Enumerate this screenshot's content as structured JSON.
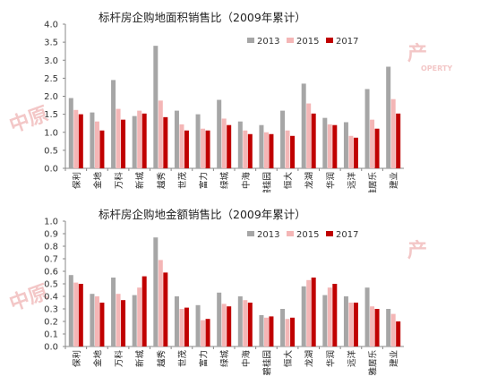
{
  "colors": {
    "s2013": "#a6a6a6",
    "s2015": "#f4b6b6",
    "s2017": "#c00000",
    "axis": "#888888"
  },
  "chart_data": [
    {
      "type": "bar",
      "title": "标杆房企购地面积销售比（2009年累计）",
      "xlabel": "",
      "ylabel": "",
      "ylim": [
        0,
        4.0
      ],
      "yticks": [
        "0.0",
        "0.5",
        "1.0",
        "1.5",
        "2.0",
        "2.5",
        "3.0",
        "3.5",
        "4.0"
      ],
      "ytick_values": [
        0,
        0.5,
        1.0,
        1.5,
        2.0,
        2.5,
        3.0,
        3.5,
        4.0
      ],
      "legend_position": "top-right",
      "categories": [
        "保利",
        "金地",
        "万科",
        "新城",
        "越秀",
        "世茂",
        "富力",
        "绿城",
        "中海",
        "碧桂园",
        "恒大",
        "龙湖",
        "华润",
        "远洋",
        "雅居乐",
        "建业"
      ],
      "series": [
        {
          "name": "2013",
          "values": [
            1.95,
            1.55,
            2.45,
            1.45,
            3.4,
            1.6,
            1.5,
            1.9,
            1.3,
            1.2,
            1.6,
            2.35,
            1.4,
            1.28,
            2.2,
            2.82
          ]
        },
        {
          "name": "2015",
          "values": [
            1.62,
            1.3,
            1.65,
            1.6,
            1.88,
            1.22,
            1.1,
            1.38,
            1.05,
            1.0,
            1.05,
            1.8,
            1.22,
            0.9,
            1.35,
            1.92
          ]
        },
        {
          "name": "2017",
          "values": [
            1.5,
            1.05,
            1.35,
            1.52,
            1.42,
            1.05,
            1.05,
            1.2,
            0.95,
            0.95,
            0.9,
            1.52,
            1.2,
            0.85,
            1.1,
            1.52
          ]
        }
      ]
    },
    {
      "type": "bar",
      "title": "标杆房企购地金额销售比（2009年累计）",
      "xlabel": "",
      "ylabel": "",
      "ylim": [
        0,
        1.0
      ],
      "yticks": [
        "0.0",
        "0.1",
        "0.2",
        "0.3",
        "0.4",
        "0.5",
        "0.6",
        "0.7",
        "0.8",
        "0.9",
        "1.0"
      ],
      "ytick_values": [
        0,
        0.1,
        0.2,
        0.3,
        0.4,
        0.5,
        0.6,
        0.7,
        0.8,
        0.9,
        1.0
      ],
      "legend_position": "top-right",
      "categories": [
        "保利",
        "金地",
        "万科",
        "新城",
        "越秀",
        "世茂",
        "富力",
        "绿城",
        "中海",
        "碧桂园",
        "恒大",
        "龙湖",
        "华润",
        "远洋",
        "雅居乐",
        "建业"
      ],
      "series": [
        {
          "name": "2013",
          "values": [
            0.57,
            0.42,
            0.55,
            0.41,
            0.87,
            0.4,
            0.33,
            0.43,
            0.4,
            0.25,
            0.3,
            0.48,
            0.41,
            0.4,
            0.47,
            0.3
          ]
        },
        {
          "name": "2015",
          "values": [
            0.51,
            0.4,
            0.42,
            0.47,
            0.69,
            0.3,
            0.21,
            0.34,
            0.37,
            0.23,
            0.22,
            0.53,
            0.47,
            0.35,
            0.32,
            0.26
          ]
        },
        {
          "name": "2017",
          "values": [
            0.5,
            0.35,
            0.37,
            0.56,
            0.59,
            0.31,
            0.22,
            0.32,
            0.35,
            0.24,
            0.23,
            0.55,
            0.5,
            0.35,
            0.3,
            0.2
          ]
        }
      ]
    }
  ],
  "watermark": {
    "text_top": "中原",
    "text_mid": "产",
    "text_sub": "OPERTY"
  }
}
